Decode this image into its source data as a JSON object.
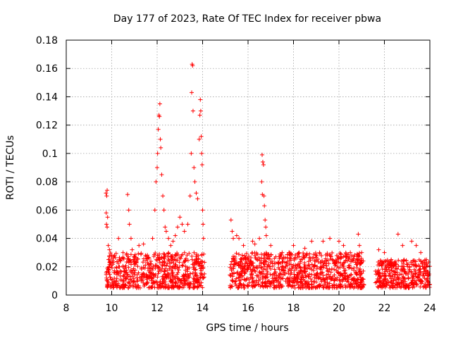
{
  "chart_data": {
    "type": "scatter",
    "title": "Day 177 of 2023, Rate Of TEC Index for receiver pbwa",
    "xlabel": "GPS time / hours",
    "ylabel": "ROTI / TECUs",
    "xlim": [
      8,
      24
    ],
    "ylim": [
      0,
      0.18
    ],
    "grid": true,
    "marker": "+",
    "color": "#ff0000",
    "x_ticks": [
      "8",
      "10",
      "12",
      "14",
      "16",
      "18",
      "20",
      "22",
      "24"
    ],
    "y_ticks": [
      "0",
      "0.02",
      "0.04",
      "0.06",
      "0.08",
      "0.1",
      "0.12",
      "0.14",
      "0.16",
      "0.18"
    ],
    "series": [
      {
        "name": "ROTI",
        "points": [
          [
            9.75,
            0.072
          ],
          [
            9.8,
            0.074
          ],
          [
            9.78,
            0.07
          ],
          [
            9.76,
            0.058
          ],
          [
            9.82,
            0.055
          ],
          [
            9.77,
            0.05
          ],
          [
            9.8,
            0.048
          ],
          [
            9.85,
            0.035
          ],
          [
            9.9,
            0.032
          ],
          [
            10.3,
            0.04
          ],
          [
            10.5,
            0.03
          ],
          [
            10.7,
            0.071
          ],
          [
            10.75,
            0.06
          ],
          [
            10.78,
            0.05
          ],
          [
            10.85,
            0.04
          ],
          [
            10.9,
            0.032
          ],
          [
            11.2,
            0.035
          ],
          [
            11.4,
            0.036
          ],
          [
            11.8,
            0.04
          ],
          [
            11.9,
            0.06
          ],
          [
            11.95,
            0.08
          ],
          [
            12.0,
            0.09
          ],
          [
            12.02,
            0.1
          ],
          [
            12.05,
            0.117
          ],
          [
            12.08,
            0.127
          ],
          [
            12.1,
            0.126
          ],
          [
            12.12,
            0.135
          ],
          [
            12.14,
            0.11
          ],
          [
            12.16,
            0.104
          ],
          [
            12.2,
            0.085
          ],
          [
            12.25,
            0.07
          ],
          [
            12.3,
            0.06
          ],
          [
            12.35,
            0.048
          ],
          [
            12.4,
            0.045
          ],
          [
            12.5,
            0.04
          ],
          [
            12.6,
            0.035
          ],
          [
            12.7,
            0.038
          ],
          [
            12.8,
            0.042
          ],
          [
            12.9,
            0.048
          ],
          [
            13.0,
            0.055
          ],
          [
            13.1,
            0.05
          ],
          [
            13.2,
            0.045
          ],
          [
            13.35,
            0.05
          ],
          [
            13.45,
            0.07
          ],
          [
            13.5,
            0.1
          ],
          [
            13.52,
            0.143
          ],
          [
            13.54,
            0.163
          ],
          [
            13.56,
            0.162
          ],
          [
            13.58,
            0.13
          ],
          [
            13.62,
            0.09
          ],
          [
            13.66,
            0.08
          ],
          [
            13.72,
            0.072
          ],
          [
            13.78,
            0.068
          ],
          [
            13.85,
            0.11
          ],
          [
            13.88,
            0.127
          ],
          [
            13.9,
            0.138
          ],
          [
            13.92,
            0.13
          ],
          [
            13.94,
            0.112
          ],
          [
            13.96,
            0.1
          ],
          [
            13.98,
            0.092
          ],
          [
            14.0,
            0.06
          ],
          [
            14.02,
            0.05
          ],
          [
            14.04,
            0.04
          ],
          [
            15.25,
            0.053
          ],
          [
            15.3,
            0.045
          ],
          [
            15.35,
            0.04
          ],
          [
            15.5,
            0.042
          ],
          [
            15.6,
            0.04
          ],
          [
            15.8,
            0.035
          ],
          [
            16.2,
            0.038
          ],
          [
            16.3,
            0.036
          ],
          [
            16.5,
            0.04
          ],
          [
            16.62,
            0.099
          ],
          [
            16.65,
            0.094
          ],
          [
            16.68,
            0.092
          ],
          [
            16.6,
            0.08
          ],
          [
            16.63,
            0.071
          ],
          [
            16.7,
            0.07
          ],
          [
            16.72,
            0.063
          ],
          [
            16.75,
            0.053
          ],
          [
            16.78,
            0.048
          ],
          [
            16.8,
            0.042
          ],
          [
            17.0,
            0.035
          ],
          [
            17.5,
            0.03
          ],
          [
            17.8,
            0.03
          ],
          [
            18.0,
            0.035
          ],
          [
            18.5,
            0.033
          ],
          [
            18.8,
            0.038
          ],
          [
            19.3,
            0.038
          ],
          [
            19.6,
            0.04
          ],
          [
            20.0,
            0.038
          ],
          [
            20.2,
            0.035
          ],
          [
            20.5,
            0.03
          ],
          [
            20.85,
            0.043
          ],
          [
            20.9,
            0.035
          ],
          [
            21.0,
            0.03
          ],
          [
            21.75,
            0.032
          ],
          [
            22.0,
            0.03
          ],
          [
            22.3,
            0.025
          ],
          [
            22.6,
            0.043
          ],
          [
            22.8,
            0.035
          ],
          [
            23.2,
            0.038
          ],
          [
            23.4,
            0.035
          ],
          [
            23.6,
            0.03
          ],
          [
            23.85,
            0.025
          ]
        ],
        "bands": [
          {
            "x": [
              9.75,
              14.1
            ],
            "y": [
              0.005,
              0.03
            ]
          },
          {
            "x": [
              15.2,
              21.1
            ],
            "y": [
              0.005,
              0.03
            ]
          },
          {
            "x": [
              21.6,
              24.0
            ],
            "y": [
              0.005,
              0.025
            ]
          }
        ]
      }
    ]
  }
}
